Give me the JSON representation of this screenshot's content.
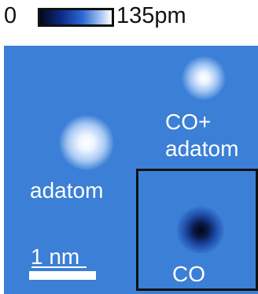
{
  "colorbar": {
    "min_label": "0",
    "max_label": "135pm",
    "gradient_colors": [
      "#050818",
      "#0d2a8a",
      "#2e6ad3",
      "#a9c6f4",
      "#ffffff"
    ]
  },
  "image": {
    "background_color": "#3b7fd6",
    "labels": {
      "co_adatom_line1": "CO+",
      "co_adatom_line2": "adatom",
      "adatom": "adatom",
      "co": "CO",
      "scale": "1 nm"
    }
  }
}
